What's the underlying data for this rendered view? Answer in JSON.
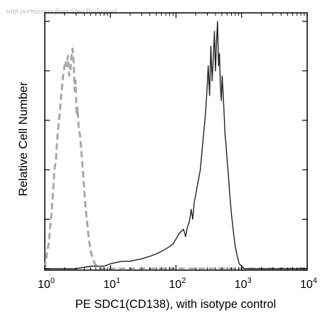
{
  "watermark": "with permission from Sino Biological",
  "chart_data": {
    "type": "line",
    "xlabel": "PE SDC1(CD138), with isotype control",
    "ylabel": "Relative Cell Number",
    "xscale": "log",
    "xlim": [
      1,
      10000
    ],
    "ylim": [
      0,
      1
    ],
    "x_ticks": [
      {
        "value": 1,
        "base": "10",
        "exp": "0"
      },
      {
        "value": 10,
        "base": "10",
        "exp": "1"
      },
      {
        "value": 100,
        "base": "10",
        "exp": "2"
      },
      {
        "value": 1000,
        "base": "10",
        "exp": "3"
      },
      {
        "value": 10000,
        "base": "10",
        "exp": "4"
      }
    ],
    "y_ticks": [
      0,
      0.2,
      0.4,
      0.6,
      0.8,
      1.0
    ],
    "grid": false,
    "legend": "none",
    "series": [
      {
        "style": "dashed",
        "color": "#a8a8a8",
        "x": [
          1.0,
          1.05,
          1.1,
          1.15,
          1.2,
          1.26,
          1.33,
          1.4,
          1.48,
          1.55,
          1.62,
          1.7,
          1.78,
          1.86,
          1.95,
          2.05,
          2.15,
          2.25,
          2.35,
          2.45,
          2.55,
          2.65,
          2.75,
          2.85,
          2.95,
          3.05,
          3.15,
          3.3,
          3.45,
          3.6,
          3.8,
          4.0,
          4.2,
          4.45,
          4.7,
          5.0,
          5.4,
          5.8,
          6.3,
          7.0,
          8.0,
          9.0,
          10.0,
          15.0,
          30.0,
          60.0,
          100.0,
          200.0,
          400.0,
          700.0,
          1000.0,
          2000.0,
          5000.0,
          10000.0
        ],
        "y": [
          0.0,
          0.04,
          0.08,
          0.1,
          0.16,
          0.22,
          0.3,
          0.4,
          0.44,
          0.53,
          0.58,
          0.64,
          0.7,
          0.76,
          0.8,
          0.84,
          0.82,
          0.86,
          0.78,
          0.8,
          0.86,
          0.89,
          0.84,
          0.72,
          0.76,
          0.62,
          0.65,
          0.56,
          0.54,
          0.48,
          0.4,
          0.32,
          0.24,
          0.18,
          0.12,
          0.07,
          0.04,
          0.02,
          0.01,
          0.0,
          0.0,
          0.0,
          0.0,
          0.0,
          0.0,
          0.0,
          0.0,
          0.0,
          0.0,
          0.0,
          0.0,
          0.0,
          0.0,
          0.0
        ]
      },
      {
        "style": "solid",
        "color": "#222222",
        "x": [
          1.0,
          2.0,
          3.0,
          5.0,
          8.0,
          10.0,
          15.0,
          20.0,
          30.0,
          40.0,
          50.0,
          60.0,
          70.0,
          80.0,
          90.0,
          100.0,
          110.0,
          120.0,
          130.0,
          140.0,
          150.0,
          160.0,
          170.0,
          180.0,
          190.0,
          200.0,
          210.0,
          220.0,
          235.0,
          250.0,
          265.0,
          280.0,
          295.0,
          310.0,
          325.0,
          340.0,
          355.0,
          370.0,
          385.0,
          400.0,
          415.0,
          430.0,
          445.0,
          460.0,
          475.0,
          490.0,
          505.0,
          520.0,
          540.0,
          560.0,
          580.0,
          600.0,
          630.0,
          660.0,
          700.0,
          750.0,
          800.0,
          860.0,
          920.0,
          1000.0,
          1100.0,
          1300.0,
          2000.0,
          5000.0,
          10000.0
        ],
        "y": [
          0.0,
          0.0,
          0.0,
          0.01,
          0.01,
          0.02,
          0.03,
          0.03,
          0.04,
          0.05,
          0.06,
          0.07,
          0.08,
          0.09,
          0.1,
          0.12,
          0.14,
          0.15,
          0.16,
          0.13,
          0.17,
          0.19,
          0.24,
          0.2,
          0.27,
          0.3,
          0.33,
          0.36,
          0.4,
          0.48,
          0.55,
          0.62,
          0.71,
          0.82,
          0.7,
          0.9,
          0.76,
          0.85,
          0.96,
          0.8,
          0.92,
          1.0,
          0.82,
          0.87,
          0.74,
          0.68,
          0.78,
          0.72,
          0.63,
          0.54,
          0.5,
          0.44,
          0.38,
          0.3,
          0.22,
          0.15,
          0.09,
          0.05,
          0.02,
          0.01,
          0.0,
          0.0,
          0.0,
          0.0,
          0.0
        ]
      }
    ]
  }
}
